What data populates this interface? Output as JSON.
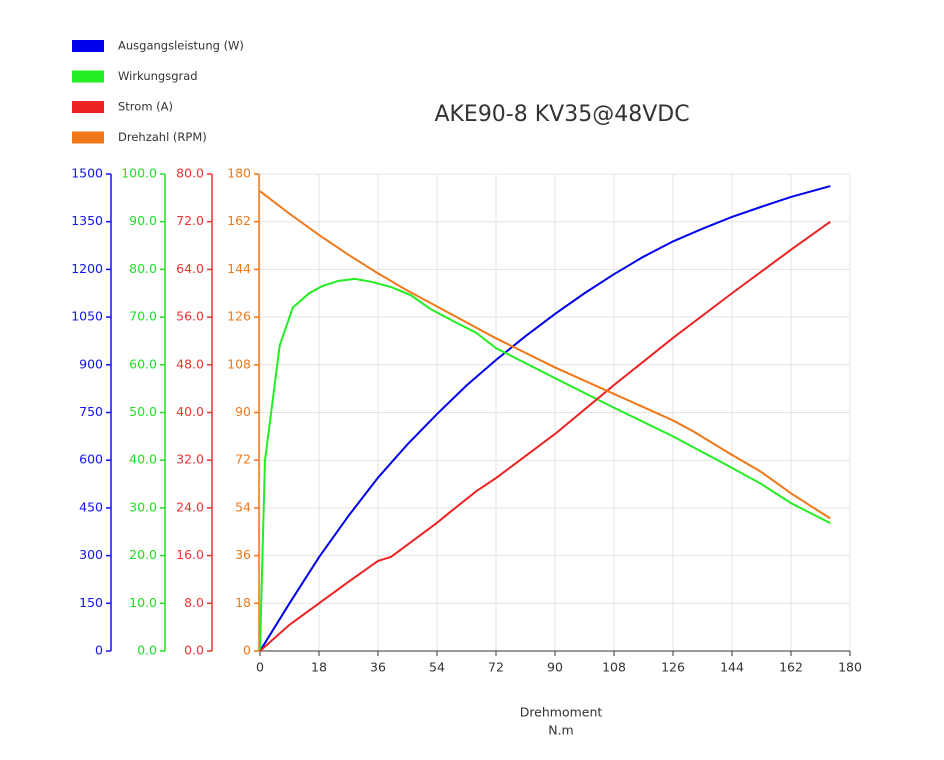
{
  "chart_data": {
    "type": "line",
    "title": "AKE90-8 KV35@48VDC",
    "xlabel": "Drehmoment",
    "xunit": "N.m",
    "xlim": [
      0,
      180
    ],
    "xticks": [
      0,
      18,
      36,
      54,
      72,
      90,
      108,
      126,
      144,
      162,
      180
    ],
    "grid": true,
    "legend": "top-left",
    "y_axes": [
      {
        "color": "#1414ee",
        "lim": [
          0,
          1500
        ],
        "ticks": [
          0,
          150,
          300,
          450,
          600,
          750,
          900,
          1050,
          1200,
          1350,
          1500
        ]
      },
      {
        "color": "#22dd22",
        "lim": [
          0,
          100
        ],
        "ticks": [
          {
            "value": 0,
            "label": "0.0"
          },
          {
            "value": 10,
            "label": "10.0"
          },
          {
            "value": 20,
            "label": "20.0"
          },
          {
            "value": 30,
            "label": "30.0"
          },
          {
            "value": 40,
            "label": "40.0"
          },
          {
            "value": 50,
            "label": "50.0"
          },
          {
            "value": 60,
            "label": "60.0"
          },
          {
            "value": 70,
            "label": "70.0"
          },
          {
            "value": 80,
            "label": "80.0"
          },
          {
            "value": 90,
            "label": "90.0"
          },
          {
            "value": 100,
            "label": "100.0"
          }
        ]
      },
      {
        "color": "#ee3333",
        "lim": [
          0,
          80
        ],
        "ticks": [
          {
            "value": 0,
            "label": "0.0"
          },
          {
            "value": 8,
            "label": "8.0"
          },
          {
            "value": 16,
            "label": "16.0"
          },
          {
            "value": 24,
            "label": "24.0"
          },
          {
            "value": 32,
            "label": "32.0"
          },
          {
            "value": 40,
            "label": "40.0"
          },
          {
            "value": 48,
            "label": "48.0"
          },
          {
            "value": 56,
            "label": "56.0"
          },
          {
            "value": 64,
            "label": "64.0"
          },
          {
            "value": 72,
            "label": "72.0"
          },
          {
            "value": 80,
            "label": "80.0"
          }
        ]
      },
      {
        "color": "#f07818",
        "lim": [
          0,
          180
        ],
        "ticks": [
          0,
          18,
          36,
          54,
          72,
          90,
          108,
          126,
          144,
          162,
          180
        ]
      }
    ],
    "series": [
      {
        "name": "Ausgangsleistung (W)",
        "color": "#0000ee",
        "axis": 0,
        "x": [
          0,
          9,
          18,
          27,
          36,
          45,
          54,
          63,
          72,
          81,
          90,
          99,
          108,
          117,
          126,
          135,
          144,
          153,
          162,
          174
        ],
        "values": [
          0,
          150,
          295,
          425,
          545,
          650,
          745,
          835,
          915,
          990,
          1060,
          1125,
          1185,
          1240,
          1288,
          1328,
          1365,
          1397,
          1428,
          1462
        ]
      },
      {
        "name": "Wirkungsgrad",
        "color": "#22ee22",
        "axis": 1,
        "x": [
          0,
          1.5,
          6,
          10,
          15,
          19,
          24,
          29,
          34,
          40,
          46,
          52,
          60,
          66,
          72,
          90,
          108,
          126,
          144,
          153,
          162,
          174
        ],
        "values": [
          0,
          39.8,
          64,
          72,
          75,
          76.5,
          77.6,
          78,
          77.4,
          76.3,
          74.6,
          71.7,
          68.8,
          66.7,
          63.5,
          57.2,
          51,
          45,
          38.4,
          35,
          31,
          26.8
        ]
      },
      {
        "name": "Strom (A)",
        "color": "#ee2222",
        "axis": 2,
        "x": [
          0,
          9,
          18,
          27,
          36,
          40,
          54,
          58,
          66,
          72,
          90,
          108,
          126,
          144,
          162,
          174
        ],
        "values": [
          0,
          4.4,
          8,
          11.6,
          15.1,
          15.8,
          21.5,
          23.3,
          26.8,
          29,
          36.4,
          44.6,
          52.5,
          60,
          67.3,
          72
        ]
      },
      {
        "name": "Drehzahl (RPM)",
        "color": "#f07818",
        "axis": 3,
        "x": [
          0,
          9,
          18,
          27,
          36,
          45,
          54,
          63,
          72,
          81,
          90,
          99,
          108,
          117,
          126,
          132,
          144,
          153,
          162,
          174
        ],
        "values": [
          173.5,
          165,
          157,
          149.5,
          142.5,
          136,
          130,
          124,
          118,
          112.5,
          107,
          102,
          97,
          92,
          87,
          83,
          74,
          67.5,
          59.5,
          50
        ]
      }
    ]
  }
}
